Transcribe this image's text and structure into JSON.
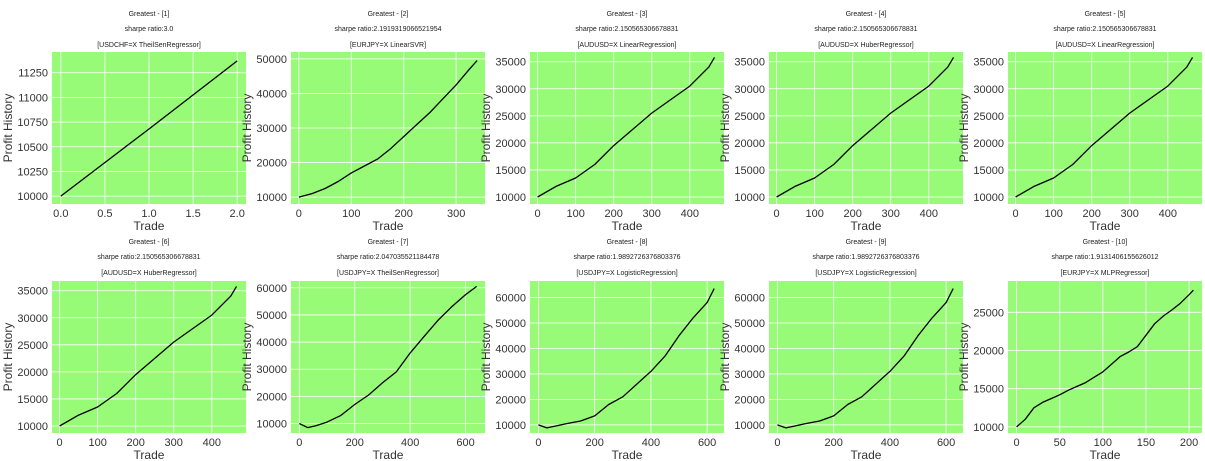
{
  "style": {
    "plot_background": "#98fb78",
    "grid_color": "#ffffff",
    "line_color": "#000000",
    "text_color": "#333333"
  },
  "chart_data": [
    {
      "type": "line",
      "title_lines": [
        "Greatest - [1]",
        "sharpe ratio:3.0",
        "[USDCHF=X TheilSenRegressor]"
      ],
      "xlabel": "Trade",
      "ylabel": "Profit History",
      "xlim": [
        -0.1,
        2.1
      ],
      "ylim": [
        9920,
        11460
      ],
      "xticks": [
        0.0,
        0.5,
        1.0,
        1.5,
        2.0
      ],
      "xtick_labels": [
        "0.0",
        "0.5",
        "1.0",
        "1.5",
        "2.0"
      ],
      "yticks": [
        10000,
        10250,
        10500,
        10750,
        11000,
        11250
      ],
      "ytick_labels": [
        "10000",
        "10250",
        "10500",
        "10750",
        "11000",
        "11250"
      ],
      "grid": true,
      "series": [
        {
          "x": [
            0,
            1,
            2
          ],
          "y": [
            10000,
            10680,
            11370
          ]
        }
      ]
    },
    {
      "type": "line",
      "title_lines": [
        "Greatest - [2]",
        "sharpe ratio:2.1919319066521954",
        "[EURJPY=X LinearSVR]"
      ],
      "xlabel": "Trade",
      "ylabel": "Profit History",
      "xlim": [
        -15,
        355
      ],
      "ylim": [
        8000,
        52000
      ],
      "xticks": [
        0,
        100,
        200,
        300
      ],
      "xtick_labels": [
        "0",
        "100",
        "200",
        "300"
      ],
      "yticks": [
        10000,
        20000,
        30000,
        40000,
        50000
      ],
      "ytick_labels": [
        "10000",
        "20000",
        "30000",
        "40000",
        "50000"
      ],
      "grid": true,
      "series": [
        {
          "x": [
            0,
            25,
            50,
            75,
            100,
            125,
            150,
            175,
            200,
            225,
            250,
            275,
            300,
            325,
            340
          ],
          "y": [
            10000,
            11000,
            12500,
            14500,
            17000,
            19000,
            21000,
            24000,
            27500,
            31000,
            34500,
            38500,
            42500,
            47000,
            49500
          ]
        }
      ]
    },
    {
      "type": "line",
      "title_lines": [
        "Greatest - [3]",
        "sharpe ratio:2.150565306678831",
        "[AUDUSD=X LinearRegression]"
      ],
      "xlabel": "Trade",
      "ylabel": "Profit History",
      "xlim": [
        -20,
        490
      ],
      "ylim": [
        8700,
        36800
      ],
      "xticks": [
        0,
        100,
        200,
        300,
        400
      ],
      "xtick_labels": [
        "0",
        "100",
        "200",
        "300",
        "400"
      ],
      "yticks": [
        10000,
        15000,
        20000,
        25000,
        30000,
        35000
      ],
      "ytick_labels": [
        "10000",
        "15000",
        "20000",
        "25000",
        "30000",
        "35000"
      ],
      "grid": true,
      "series": [
        {
          "x": [
            0,
            50,
            100,
            150,
            200,
            250,
            300,
            350,
            400,
            450,
            465
          ],
          "y": [
            10000,
            12000,
            13500,
            16000,
            19500,
            22500,
            25500,
            28000,
            30500,
            34000,
            35800
          ]
        }
      ]
    },
    {
      "type": "line",
      "title_lines": [
        "Greatest - [4]",
        "sharpe ratio:2.150565306678831",
        "[AUDUSD=X HuberRegressor]"
      ],
      "xlabel": "Trade",
      "ylabel": "Profit History",
      "xlim": [
        -20,
        490
      ],
      "ylim": [
        8700,
        36800
      ],
      "xticks": [
        0,
        100,
        200,
        300,
        400
      ],
      "xtick_labels": [
        "0",
        "100",
        "200",
        "300",
        "400"
      ],
      "yticks": [
        10000,
        15000,
        20000,
        25000,
        30000,
        35000
      ],
      "ytick_labels": [
        "10000",
        "15000",
        "20000",
        "25000",
        "30000",
        "35000"
      ],
      "grid": true,
      "series": [
        {
          "x": [
            0,
            50,
            100,
            150,
            200,
            250,
            300,
            350,
            400,
            450,
            465
          ],
          "y": [
            10000,
            12000,
            13500,
            16000,
            19500,
            22500,
            25500,
            28000,
            30500,
            34000,
            35800
          ]
        }
      ]
    },
    {
      "type": "line",
      "title_lines": [
        "Greatest - [5]",
        "sharpe ratio:2.150565306678831",
        "[AUDUSD=X LinearRegression]"
      ],
      "xlabel": "Trade",
      "ylabel": "Profit History",
      "xlim": [
        -20,
        490
      ],
      "ylim": [
        8700,
        36800
      ],
      "xticks": [
        0,
        100,
        200,
        300,
        400
      ],
      "xtick_labels": [
        "0",
        "100",
        "200",
        "300",
        "400"
      ],
      "yticks": [
        10000,
        15000,
        20000,
        25000,
        30000,
        35000
      ],
      "ytick_labels": [
        "10000",
        "15000",
        "20000",
        "25000",
        "30000",
        "35000"
      ],
      "grid": true,
      "series": [
        {
          "x": [
            0,
            50,
            100,
            150,
            200,
            250,
            300,
            350,
            400,
            450,
            465
          ],
          "y": [
            10000,
            12000,
            13500,
            16000,
            19500,
            22500,
            25500,
            28000,
            30500,
            34000,
            35800
          ]
        }
      ]
    },
    {
      "type": "line",
      "title_lines": [
        "Greatest - [6]",
        "sharpe ratio:2.150565306678831",
        "[AUDUSD=X HuberRegressor]"
      ],
      "xlabel": "Trade",
      "ylabel": "Profit History",
      "xlim": [
        -20,
        490
      ],
      "ylim": [
        8700,
        36800
      ],
      "xticks": [
        0,
        100,
        200,
        300,
        400
      ],
      "xtick_labels": [
        "0",
        "100",
        "200",
        "300",
        "400"
      ],
      "yticks": [
        10000,
        15000,
        20000,
        25000,
        30000,
        35000
      ],
      "ytick_labels": [
        "10000",
        "15000",
        "20000",
        "25000",
        "30000",
        "35000"
      ],
      "grid": true,
      "series": [
        {
          "x": [
            0,
            50,
            100,
            150,
            200,
            250,
            300,
            350,
            400,
            450,
            465
          ],
          "y": [
            10000,
            12000,
            13500,
            16000,
            19500,
            22500,
            25500,
            28000,
            30500,
            34000,
            35800
          ]
        }
      ]
    },
    {
      "type": "line",
      "title_lines": [
        "Greatest - [7]",
        "sharpe ratio:2.047035521184478",
        "[USDJPY=X TheilSenRegressor]"
      ],
      "xlabel": "Trade",
      "ylabel": "Profit History",
      "xlim": [
        -30,
        670
      ],
      "ylim": [
        6500,
        62500
      ],
      "xticks": [
        0,
        200,
        400,
        600
      ],
      "xtick_labels": [
        "0",
        "200",
        "400",
        "600"
      ],
      "yticks": [
        10000,
        20000,
        30000,
        40000,
        50000,
        60000
      ],
      "ytick_labels": [
        "10000",
        "20000",
        "30000",
        "40000",
        "50000",
        "60000"
      ],
      "grid": true,
      "series": [
        {
          "x": [
            0,
            30,
            60,
            100,
            150,
            200,
            250,
            300,
            350,
            400,
            450,
            500,
            550,
            600,
            640
          ],
          "y": [
            10000,
            8500,
            9200,
            10500,
            13000,
            17000,
            20500,
            25000,
            29000,
            36000,
            42000,
            48000,
            53000,
            57500,
            60500
          ]
        }
      ]
    },
    {
      "type": "line",
      "title_lines": [
        "Greatest - [8]",
        "sharpe ratio:1.9892726376803376",
        "[USDJPY=X LogisticRegression]"
      ],
      "xlabel": "Trade",
      "ylabel": "Profit History",
      "xlim": [
        -30,
        660
      ],
      "ylim": [
        6800,
        66500
      ],
      "xticks": [
        0,
        200,
        400,
        600
      ],
      "xtick_labels": [
        "0",
        "200",
        "400",
        "600"
      ],
      "yticks": [
        10000,
        20000,
        30000,
        40000,
        50000,
        60000
      ],
      "ytick_labels": [
        "10000",
        "20000",
        "30000",
        "40000",
        "50000",
        "60000"
      ],
      "grid": true,
      "series": [
        {
          "x": [
            0,
            30,
            60,
            100,
            150,
            200,
            250,
            300,
            350,
            400,
            450,
            500,
            550,
            600,
            625
          ],
          "y": [
            10000,
            8800,
            9500,
            10500,
            11500,
            13500,
            18000,
            21000,
            26000,
            31000,
            37000,
            45000,
            52000,
            58000,
            63500
          ]
        }
      ]
    },
    {
      "type": "line",
      "title_lines": [
        "Greatest - [9]",
        "sharpe ratio:1.9892726376803376",
        "[USDJPY=X LogisticRegression]"
      ],
      "xlabel": "Trade",
      "ylabel": "Profit History",
      "xlim": [
        -30,
        660
      ],
      "ylim": [
        6800,
        66500
      ],
      "xticks": [
        0,
        200,
        400,
        600
      ],
      "xtick_labels": [
        "0",
        "200",
        "400",
        "600"
      ],
      "yticks": [
        10000,
        20000,
        30000,
        40000,
        50000,
        60000
      ],
      "ytick_labels": [
        "10000",
        "20000",
        "30000",
        "40000",
        "50000",
        "60000"
      ],
      "grid": true,
      "series": [
        {
          "x": [
            0,
            30,
            60,
            100,
            150,
            200,
            250,
            300,
            350,
            400,
            450,
            500,
            550,
            600,
            625
          ],
          "y": [
            10000,
            8800,
            9500,
            10500,
            11500,
            13500,
            18000,
            21000,
            26000,
            31000,
            37000,
            45000,
            52000,
            58000,
            63500
          ]
        }
      ]
    },
    {
      "type": "line",
      "title_lines": [
        "Greatest - [10]",
        "sharpe ratio:1.9131406155626012",
        "[EURJPY=X MLPRegressor]"
      ],
      "xlabel": "Trade",
      "ylabel": "Profit History",
      "xlim": [
        -10,
        215
      ],
      "ylim": [
        9200,
        29100
      ],
      "xticks": [
        0,
        50,
        100,
        150,
        200
      ],
      "xtick_labels": [
        "0",
        "50",
        "100",
        "150",
        "200"
      ],
      "yticks": [
        10000,
        15000,
        20000,
        25000
      ],
      "ytick_labels": [
        "10000",
        "15000",
        "20000",
        "25000"
      ],
      "grid": true,
      "series": [
        {
          "x": [
            0,
            10,
            20,
            30,
            40,
            50,
            60,
            70,
            80,
            90,
            100,
            110,
            120,
            130,
            140,
            150,
            160,
            170,
            180,
            190,
            200,
            205
          ],
          "y": [
            10000,
            11000,
            12500,
            13200,
            13700,
            14200,
            14800,
            15300,
            15800,
            16500,
            17200,
            18200,
            19200,
            19800,
            20500,
            22000,
            23500,
            24500,
            25300,
            26200,
            27300,
            27900
          ]
        }
      ]
    }
  ]
}
